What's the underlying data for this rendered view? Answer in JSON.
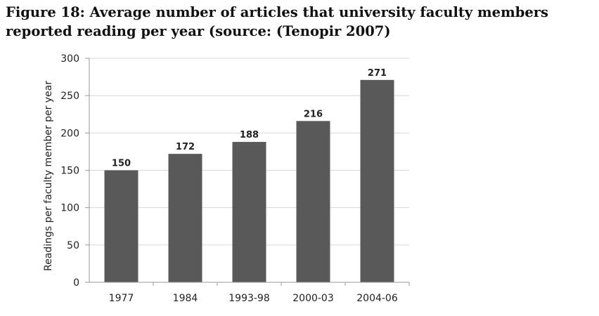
{
  "figure": {
    "caption": "Figure 18: Average number of articles that university faculty members reported reading per year (source: (Tenopir 2007)"
  },
  "chart_data": {
    "type": "bar",
    "categories": [
      "1977",
      "1984",
      "1993-98",
      "2000-03",
      "2004-06"
    ],
    "values": [
      150,
      172,
      188,
      216,
      271
    ],
    "data_labels": [
      "150",
      "172",
      "188",
      "216",
      "271"
    ],
    "title": "",
    "xlabel": "",
    "ylabel": "Readings per faculty member per year",
    "ylim": [
      0,
      300
    ],
    "yticks": [
      0,
      50,
      100,
      150,
      200,
      250,
      300
    ],
    "grid": true,
    "legend": "none",
    "bar_color": "#595959",
    "grid_color": "#d8d8d8",
    "axis_color": "#9a9a9a"
  }
}
